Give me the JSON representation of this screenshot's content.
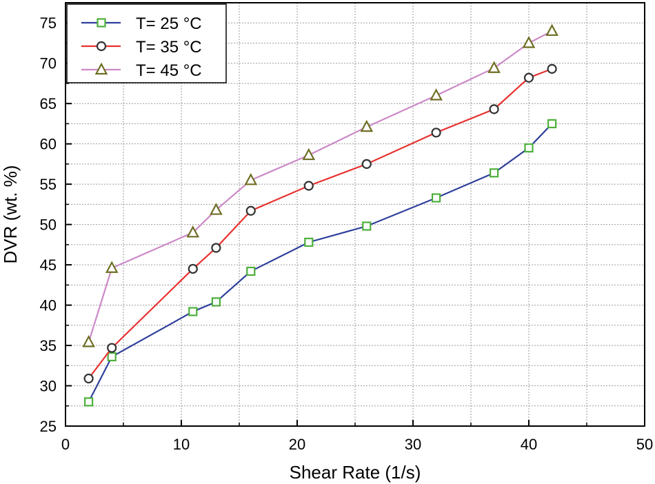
{
  "chart_data": {
    "type": "line",
    "title": "",
    "xlabel": "Shear Rate (1/s)",
    "ylabel": "DVR (wt. %)",
    "xlim": [
      0,
      50
    ],
    "ylim": [
      25,
      77.5
    ],
    "xticks": [
      0,
      10,
      20,
      30,
      40,
      50
    ],
    "yticks": [
      25,
      30,
      35,
      40,
      45,
      50,
      55,
      60,
      65,
      70,
      75
    ],
    "x_tick_labels": [
      "0",
      "10",
      "20",
      "30",
      "40",
      "50"
    ],
    "y_tick_labels": [
      "25",
      "30",
      "35",
      "40",
      "45",
      "50",
      "55",
      "60",
      "65",
      "70",
      "75"
    ],
    "grid": true,
    "legend_position": "top-left",
    "series": [
      {
        "name": "T= 25 °C",
        "line_color": "#2e3f9a",
        "marker": "square",
        "marker_color": "#4caf3a",
        "x": [
          2,
          4,
          11,
          13,
          16,
          21,
          26,
          32,
          37,
          40,
          42
        ],
        "y": [
          28,
          33.6,
          39.2,
          40.4,
          44.2,
          47.8,
          49.8,
          53.3,
          56.4,
          59.5,
          62.5
        ]
      },
      {
        "name": "T= 35 °C",
        "line_color": "#e8312f",
        "marker": "circle",
        "marker_color": "#333333",
        "x": [
          2,
          4,
          11,
          13,
          16,
          21,
          26,
          32,
          37,
          40,
          42
        ],
        "y": [
          30.9,
          34.7,
          44.5,
          47.1,
          51.7,
          54.8,
          57.5,
          61.4,
          64.3,
          68.2,
          69.3
        ]
      },
      {
        "name": "T= 45 °C",
        "line_color": "#cc88c8",
        "marker": "triangle",
        "marker_color": "#6e6e24",
        "x": [
          2,
          4,
          11,
          13,
          16,
          21,
          26,
          32,
          37,
          40,
          42
        ],
        "y": [
          35.4,
          44.6,
          49,
          51.8,
          55.5,
          58.6,
          62.1,
          66,
          69.4,
          72.5,
          74
        ]
      }
    ]
  }
}
